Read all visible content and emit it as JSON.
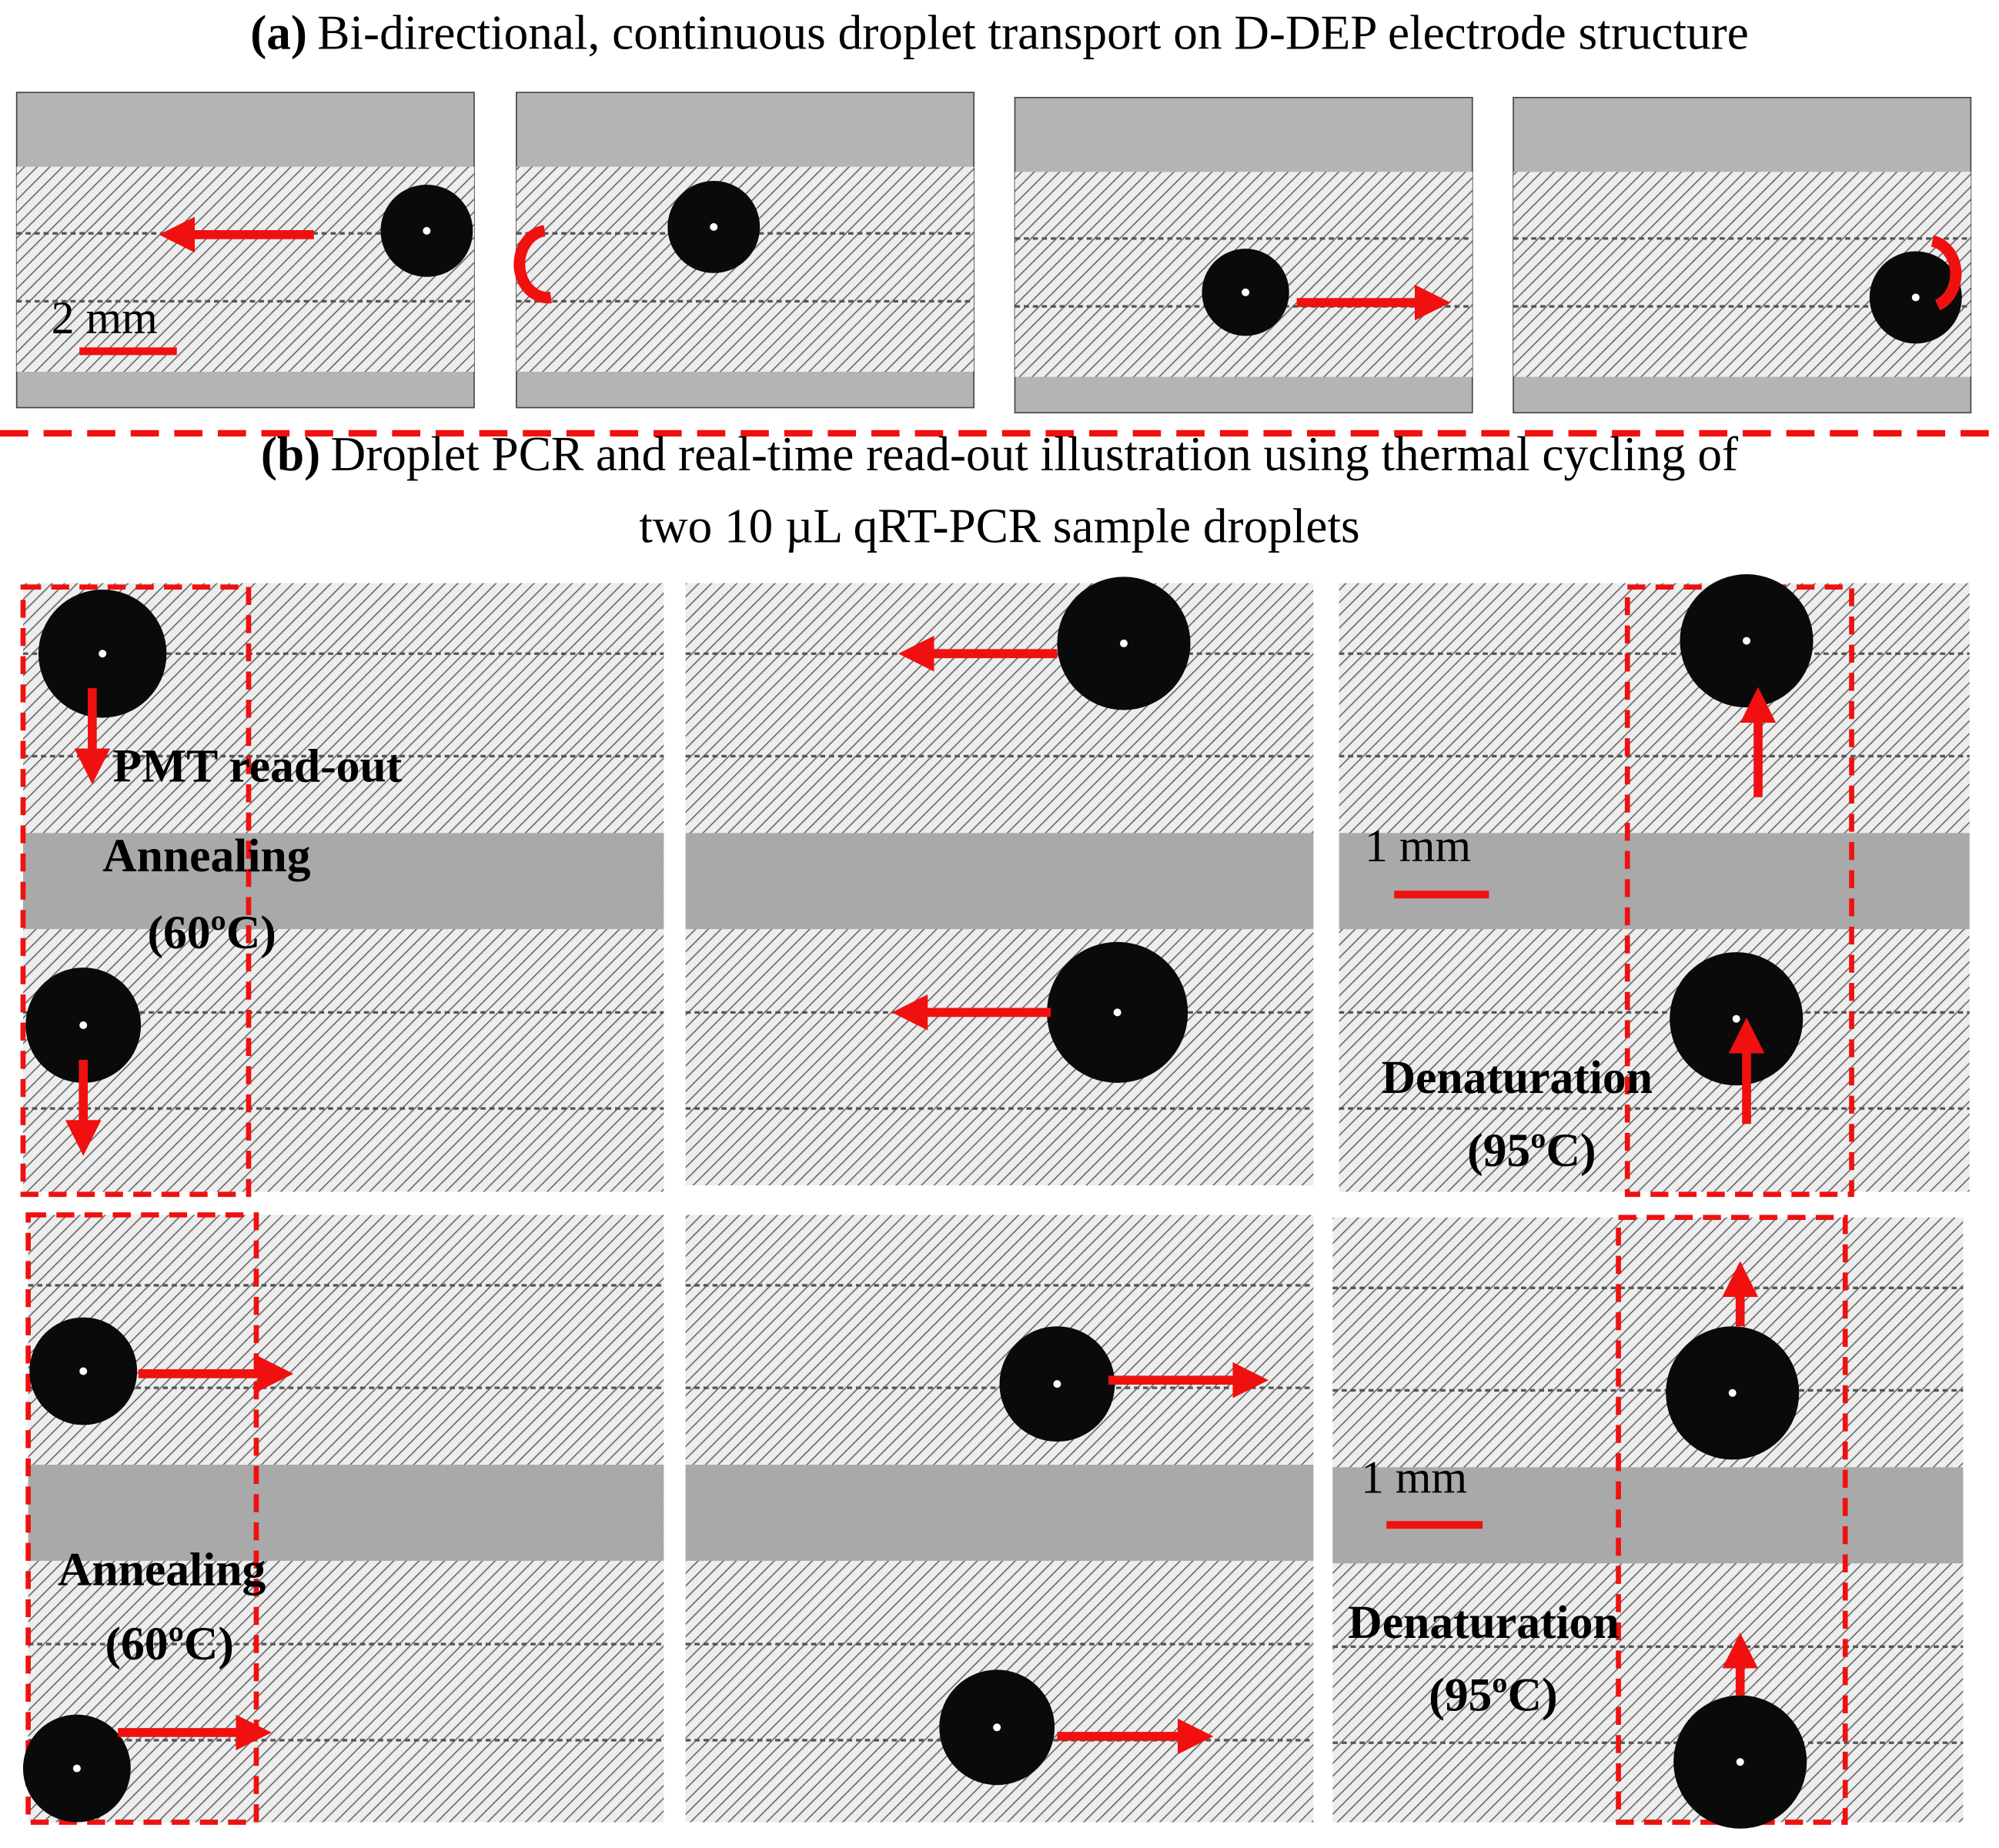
{
  "panel_a": {
    "label": "(a)",
    "title": "Bi-directional, continuous droplet transport on D-DEP electrode structure",
    "scale_bar": "2 mm"
  },
  "panel_b": {
    "label": "(b)",
    "title_line1": "Droplet PCR and real-time read-out illustration using thermal cycling of",
    "title_line2": "two 10 µL qRT-PCR sample droplets",
    "frames": [
      {
        "readout": "PMT read-out",
        "step": "Annealing",
        "temperature": "(60ºC)"
      },
      {
        "scale_bar": "1 mm",
        "step": "Denaturation",
        "temperature": "(95ºC)"
      },
      {
        "step": "Annealing",
        "temperature": "(60ºC)"
      },
      {
        "scale_bar": "1 mm",
        "step": "Denaturation",
        "temperature": "(95ºC)"
      }
    ]
  }
}
